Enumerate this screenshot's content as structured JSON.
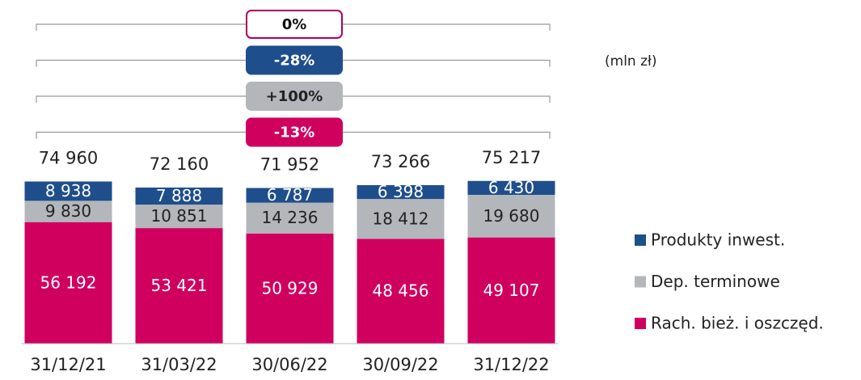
{
  "chart_data": {
    "type": "stacked_bar",
    "unit_label": "(mln zł)",
    "categories": [
      "31/12/21",
      "31/03/22",
      "30/06/22",
      "30/09/22",
      "31/12/22"
    ],
    "series": [
      {
        "name": "Rach. bież. i oszczęd.",
        "color": "#d0005f",
        "label_color": "#ffffff",
        "values": [
          56192,
          53421,
          50929,
          48456,
          49107
        ],
        "value_labels": [
          "56 192",
          "53 421",
          "50 929",
          "48 456",
          "49 107"
        ]
      },
      {
        "name": "Dep. terminowe",
        "color": "#b3b6ba",
        "label_color": "#222222",
        "values": [
          9830,
          10851,
          14236,
          18412,
          19680
        ],
        "value_labels": [
          "9 830",
          "10 851",
          "14 236",
          "18 412",
          "19 680"
        ]
      },
      {
        "name": "Produkty inwest.",
        "color": "#1f4e8c",
        "label_color": "#ffffff",
        "values": [
          8938,
          7888,
          6787,
          6398,
          6430
        ],
        "value_labels": [
          "8 938",
          "7 888",
          "6 787",
          "6 398",
          "6 430"
        ]
      }
    ],
    "totals": {
      "values": [
        74960,
        72160,
        71952,
        73266,
        75217
      ],
      "value_labels": [
        "74 960",
        "72 160",
        "71 952",
        "73 266",
        "75 217"
      ]
    },
    "annotations": [
      {
        "text": "0%",
        "fill": "#ffffff",
        "border": "#b0005a",
        "text_color": "#111111"
      },
      {
        "text": "-28%",
        "fill": "#1f4e8c",
        "border": "#1f4e8c",
        "text_color": "#ffffff"
      },
      {
        "text": "+100%",
        "fill": "#b3b6ba",
        "border": "#b3b6ba",
        "text_color": "#222222"
      },
      {
        "text": "-13%",
        "fill": "#d0005f",
        "border": "#d0005f",
        "text_color": "#ffffff"
      }
    ],
    "ylim": [
      0,
      80000
    ]
  }
}
